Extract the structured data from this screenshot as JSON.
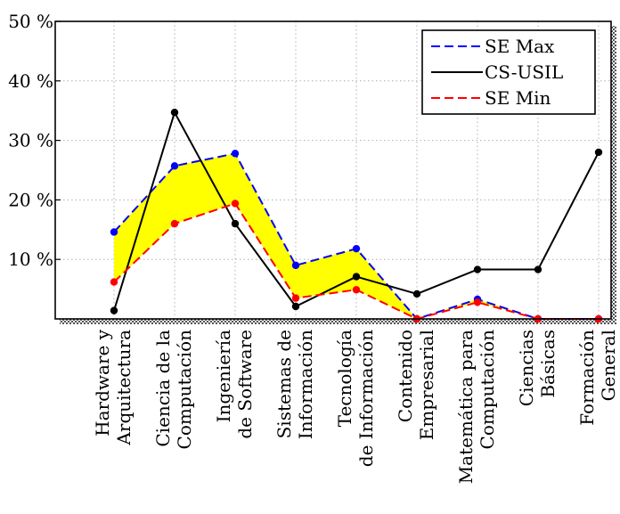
{
  "chart_data": {
    "type": "line",
    "categories": [
      [
        "Hardware y",
        "Arquitectura"
      ],
      [
        "Ciencia de la",
        "Computación"
      ],
      [
        "Ingeniería",
        "de Software"
      ],
      [
        "Sistemas de",
        "Información"
      ],
      [
        "Tecnología",
        "de Información"
      ],
      [
        "Contenido",
        "Empresarial"
      ],
      [
        "Matemática para",
        "Computación"
      ],
      [
        "Ciencias",
        "Básicas"
      ],
      [
        "Formación",
        "General"
      ]
    ],
    "series": [
      {
        "name": "SE Max",
        "style": "dashed",
        "color": "#0000ff",
        "marker_color": "#0000ff",
        "values": [
          14.6,
          25.7,
          27.8,
          9.0,
          11.8,
          0.0,
          3.3,
          0.0,
          0.0
        ]
      },
      {
        "name": "CS-USIL",
        "style": "solid",
        "color": "#000000",
        "marker_color": "#000000",
        "values": [
          1.4,
          34.7,
          16.0,
          2.1,
          7.1,
          4.2,
          8.3,
          8.3,
          28.0
        ]
      },
      {
        "name": "SE Min",
        "style": "dashed",
        "color": "#ff0000",
        "marker_color": "#ff0000",
        "values": [
          6.2,
          16.0,
          19.4,
          3.5,
          4.9,
          0.0,
          2.8,
          0.0,
          0.0
        ]
      }
    ],
    "band": {
      "between": [
        "SE Min",
        "SE Max"
      ],
      "color": "#ffff00"
    },
    "ylim": [
      0,
      50
    ],
    "yticks": [
      10,
      20,
      30,
      40,
      50
    ],
    "ytick_labels": [
      "10 %",
      "20 %",
      "30 %",
      "40 %",
      "50 %"
    ],
    "grid": "dotted",
    "legend_position": "top-right",
    "title": "",
    "xlabel": "",
    "ylabel": ""
  }
}
